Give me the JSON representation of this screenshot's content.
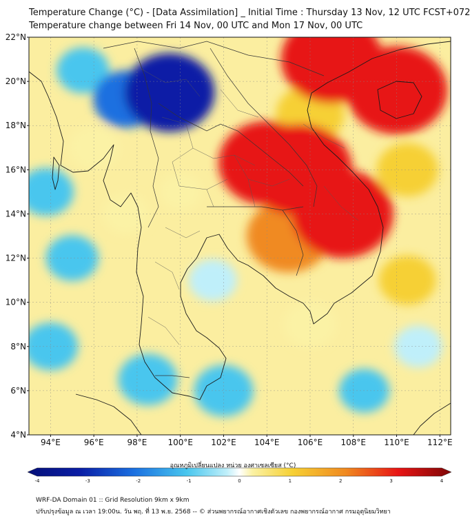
{
  "title": {
    "line1": "Temperature Change (°C) - [Data Assimilation] _ Initial Time : Thursday 13 Nov, 12 UTC FCST+072",
    "line2": "Temperature change between Fri 14 Nov, 00 UTC and Mon 17 Nov, 00 UTC"
  },
  "map": {
    "lat_range": [
      4,
      22
    ],
    "lon_range": [
      93,
      112.5
    ],
    "lat_labels": [
      "22°N",
      "20°N",
      "18°N",
      "16°N",
      "14°N",
      "12°N",
      "10°N",
      "8°N",
      "6°N",
      "4°N"
    ],
    "lat_values": [
      22,
      20,
      18,
      16,
      14,
      12,
      10,
      8,
      6,
      4
    ],
    "lon_labels": [
      "94°E",
      "96°E",
      "98°E",
      "100°E",
      "102°E",
      "104°E",
      "106°E",
      "108°E",
      "110°E",
      "112°E"
    ],
    "lon_values": [
      94,
      96,
      98,
      100,
      102,
      104,
      106,
      108,
      110,
      112
    ],
    "field": [
      {
        "lon": 105.5,
        "lat": 16.0,
        "value": 3.2
      },
      {
        "lon": 104.0,
        "lat": 16.3,
        "value": 2.8
      },
      {
        "lon": 107.5,
        "lat": 14.0,
        "value": 3.0
      },
      {
        "lon": 107.0,
        "lat": 21.0,
        "value": 3.0
      },
      {
        "lon": 110.0,
        "lat": 19.6,
        "value": 3.0
      },
      {
        "lon": 105.0,
        "lat": 13.0,
        "value": 2.2
      },
      {
        "lon": 106.0,
        "lat": 18.5,
        "value": 1.5
      },
      {
        "lon": 110.5,
        "lat": 16.0,
        "value": 1.2
      },
      {
        "lon": 99.5,
        "lat": 19.5,
        "value": -2.5
      },
      {
        "lon": 97.5,
        "lat": 19.2,
        "value": -1.4
      },
      {
        "lon": 95.5,
        "lat": 20.5,
        "value": -0.8
      },
      {
        "lon": 93.8,
        "lat": 15.0,
        "value": -0.9
      },
      {
        "lon": 95.0,
        "lat": 12.0,
        "value": -0.8
      },
      {
        "lon": 94.0,
        "lat": 8.0,
        "value": -0.9
      },
      {
        "lon": 98.5,
        "lat": 6.5,
        "value": -1.1
      },
      {
        "lon": 102.0,
        "lat": 6.0,
        "value": -1.1
      },
      {
        "lon": 108.5,
        "lat": 6.0,
        "value": -0.7
      },
      {
        "lon": 111.0,
        "lat": 8.0,
        "value": -0.6
      },
      {
        "lon": 101.5,
        "lat": 11.0,
        "value": -0.6
      },
      {
        "lon": 100.0,
        "lat": 15.0,
        "value": 0.3
      },
      {
        "lon": 97.5,
        "lat": 14.0,
        "value": 0.5
      },
      {
        "lon": 106.0,
        "lat": 9.0,
        "value": 0.8
      },
      {
        "lon": 110.5,
        "lat": 11.0,
        "value": 1.0
      },
      {
        "lon": 96.0,
        "lat": 17.0,
        "value": 0.7
      }
    ]
  },
  "colorbar": {
    "label": "อุณหภูมิเปลี่ยนแปลง หน่วย องศาเซลเซียส (°C)",
    "min": -4,
    "max": 4,
    "ticks": [
      "-4",
      "-3",
      "-2",
      "-1",
      "0",
      "1",
      "2",
      "3",
      "4"
    ],
    "tick_values": [
      -4,
      -3,
      -2,
      -1,
      0,
      1,
      2,
      3,
      4
    ]
  },
  "footer": {
    "line1": "WRF-DA Domain 01 :: Grid Resolution 9km x 9km",
    "line2": "ปรับปรุงข้อมูล ณ เวลา 19:00น. วัน พฤ. ที่ 13 พ.ย. 2568 -- © ส่วนพยากรณ์อากาศเชิงตัวเลข กองพยากรณ์อากาศ กรมอุตุนิยมวิทยา"
  },
  "colors": {
    "very_cold": "#0a1ea6",
    "cold": "#1a6fe0",
    "cool": "#48c6ee",
    "light_cool": "#bfeffa",
    "neutral": "#ffffff",
    "light_warm": "#fbf2a5",
    "warm": "#f6d034",
    "orange": "#f08a20",
    "hot": "#e71414",
    "very_hot": "#7e0606"
  }
}
